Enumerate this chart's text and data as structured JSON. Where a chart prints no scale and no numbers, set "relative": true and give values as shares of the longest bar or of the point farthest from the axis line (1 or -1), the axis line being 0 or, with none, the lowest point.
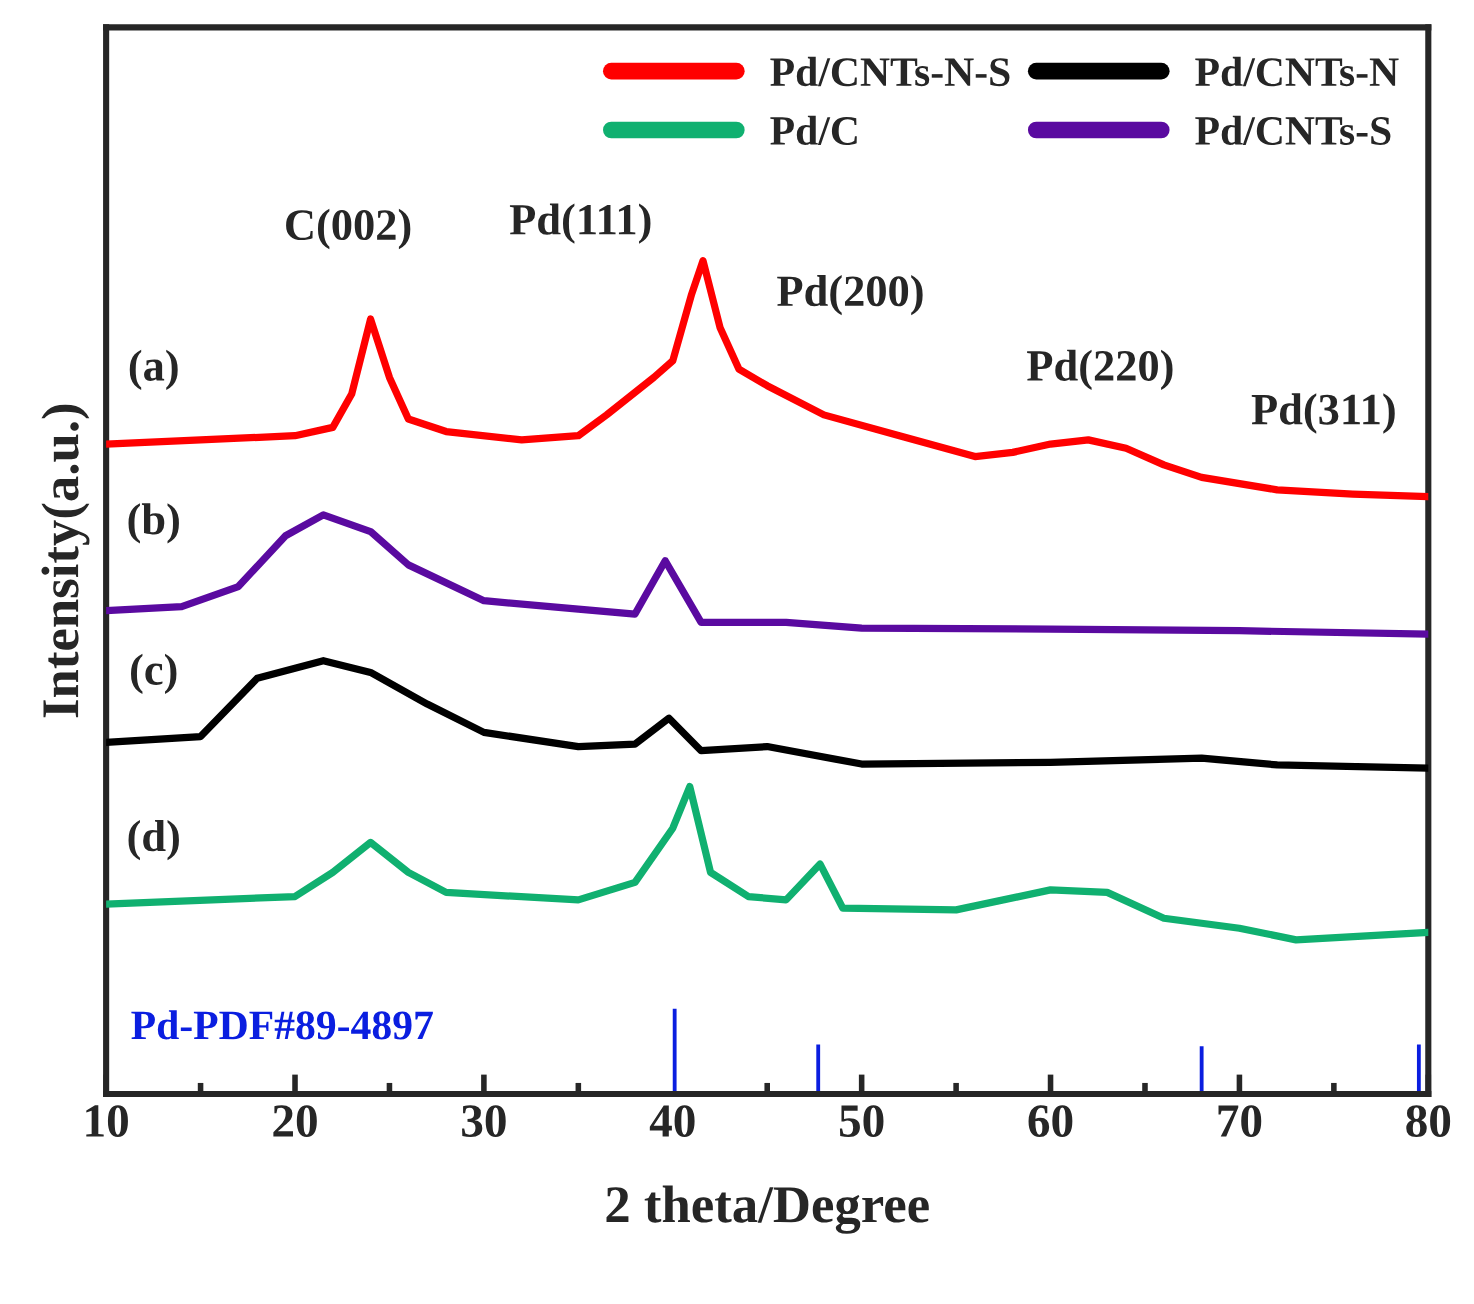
{
  "chart_data": {
    "type": "line",
    "relative": true,
    "xlabel": "2 theta/Degree",
    "ylabel": "Intensity(a.u.)",
    "xlim": [
      10,
      80
    ],
    "xticks": [
      10,
      20,
      30,
      40,
      50,
      60,
      70,
      80
    ],
    "tick_labels": "x",
    "grid": false,
    "legend": "top right",
    "marker": "none",
    "line_style": "solid",
    "series": [
      {
        "name": "Pd/CNTs-N-S",
        "color": "#ff0000",
        "x": [
          10,
          15,
          20,
          22,
          23,
          24,
          25,
          26,
          28,
          32,
          35,
          36.5,
          39,
          40,
          41,
          41.6,
          42.5,
          43.5,
          45,
          48,
          52,
          56,
          58,
          60,
          62,
          64,
          66,
          68,
          72,
          76,
          80
        ],
        "values": [
          0.78,
          0.785,
          0.79,
          0.8,
          0.84,
          0.93,
          0.86,
          0.81,
          0.795,
          0.785,
          0.79,
          0.815,
          0.86,
          0.88,
          0.96,
          1.0,
          0.92,
          0.87,
          0.85,
          0.815,
          0.79,
          0.765,
          0.77,
          0.78,
          0.785,
          0.775,
          0.755,
          0.74,
          0.725,
          0.72,
          0.717
        ]
      },
      {
        "name": "Pd/C",
        "color": "#10b070",
        "x": [
          10,
          20,
          22,
          24,
          26,
          28,
          35,
          38,
          40,
          40.9,
          42,
          44,
          46,
          47.8,
          49,
          55,
          60,
          63,
          66,
          70,
          73,
          80
        ],
        "values": [
          0.228,
          0.237,
          0.266,
          0.302,
          0.266,
          0.242,
          0.233,
          0.254,
          0.319,
          0.369,
          0.266,
          0.237,
          0.233,
          0.276,
          0.223,
          0.221,
          0.245,
          0.242,
          0.211,
          0.199,
          0.185,
          0.194
        ]
      },
      {
        "name": "Pd/CNTs-N",
        "color": "#000000",
        "x": [
          10,
          15,
          18,
          21.5,
          24,
          27,
          30,
          35,
          38,
          39.8,
          41.5,
          45,
          50,
          60,
          68,
          72,
          80
        ],
        "values": [
          0.422,
          0.429,
          0.499,
          0.52,
          0.506,
          0.468,
          0.434,
          0.417,
          0.42,
          0.451,
          0.412,
          0.417,
          0.396,
          0.398,
          0.403,
          0.395,
          0.391
        ]
      },
      {
        "name": "Pd/CNTs-S",
        "color": "#5a0aa0",
        "x": [
          10,
          14,
          17,
          19.5,
          21.5,
          24,
          26,
          30,
          35,
          38,
          39.6,
          41.5,
          46,
          50,
          60,
          70,
          80
        ],
        "values": [
          0.58,
          0.585,
          0.609,
          0.67,
          0.695,
          0.675,
          0.635,
          0.592,
          0.582,
          0.576,
          0.64,
          0.566,
          0.566,
          0.559,
          0.558,
          0.556,
          0.552
        ]
      },
      {
        "name": "Pd-PDF#89-4897",
        "type": "bar",
        "color": "#0a1ee0",
        "x": [
          40.1,
          47.7,
          68.0,
          79.5
        ],
        "values": [
          0.104,
          0.061,
          0.059,
          0.061
        ]
      }
    ],
    "annotations": [
      "C(002)",
      "Pd(111)",
      "Pd(200)",
      "Pd(220)",
      "Pd(311)",
      "(a)",
      "(b)",
      "(c)",
      "(d)"
    ]
  }
}
